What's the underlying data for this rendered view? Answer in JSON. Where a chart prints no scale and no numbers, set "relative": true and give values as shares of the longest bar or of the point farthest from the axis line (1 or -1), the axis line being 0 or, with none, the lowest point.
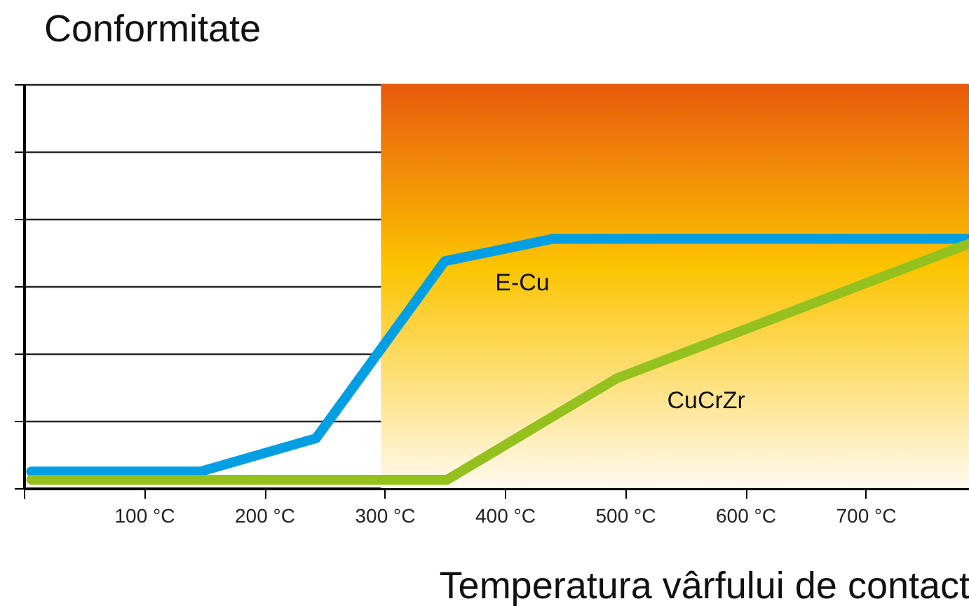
{
  "chart_data": {
    "type": "line",
    "title": "Conformitate",
    "xlabel": "Temperatura vârfului de contact",
    "relative": true,
    "series": [
      {
        "name": "E-Cu",
        "color": "#009fe3",
        "x": [
          6,
          147,
          243,
          350,
          440,
          786
        ],
        "values": [
          0.067,
          0.067,
          0.2,
          0.91,
          1.0,
          1.0
        ]
      },
      {
        "name": "CuCrZr",
        "color": "#95c11f",
        "x": [
          6,
          352,
          493,
          786
        ],
        "values": [
          0.034,
          0.034,
          0.44,
          0.98
        ]
      }
    ],
    "xlim": [
      0,
      786
    ],
    "xticks": [
      {
        "value": 0,
        "label": null
      },
      {
        "value": 100,
        "label": "100 °C"
      },
      {
        "value": 200,
        "label": "200 °C"
      },
      {
        "value": 300,
        "label": "300 °C"
      },
      {
        "value": 400,
        "label": "400 °C"
      },
      {
        "value": 500,
        "label": "500 °C"
      },
      {
        "value": 600,
        "label": "600 °C"
      },
      {
        "value": 700,
        "label": "700 °C"
      }
    ],
    "bands": [
      {
        "axis": "x",
        "from": 297,
        "to": 786,
        "color": "#fcc400"
      }
    ],
    "grid": "y",
    "legend": false,
    "marker": "none",
    "line_style": "solid"
  }
}
